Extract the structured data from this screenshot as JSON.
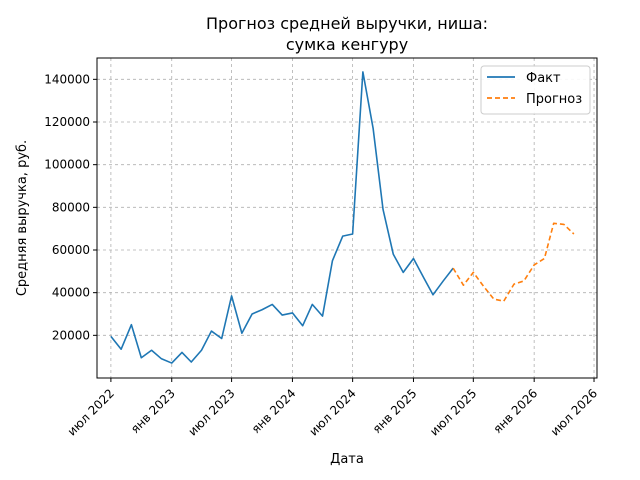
{
  "chart_data": {
    "type": "line",
    "title": [
      "Прогноз средней выручки, ниша:",
      "сумка кенгуру"
    ],
    "xlabel": "Дата",
    "ylabel": "Средняя выручка, руб.",
    "ylim": [
      0,
      150000
    ],
    "yticks": [
      20000,
      40000,
      60000,
      80000,
      100000,
      120000,
      140000
    ],
    "xlim": [
      "2022-05-20",
      "2026-07-10"
    ],
    "xticks": [
      {
        "date": "2022-07-01",
        "label": "июл 2022"
      },
      {
        "date": "2023-01-01",
        "label": "янв 2023"
      },
      {
        "date": "2023-07-01",
        "label": "июл 2023"
      },
      {
        "date": "2024-01-01",
        "label": "янв 2024"
      },
      {
        "date": "2024-07-01",
        "label": "июл 2024"
      },
      {
        "date": "2025-01-01",
        "label": "янв 2025"
      },
      {
        "date": "2025-07-01",
        "label": "июл 2025"
      },
      {
        "date": "2026-01-01",
        "label": "янв 2026"
      },
      {
        "date": "2026-07-01",
        "label": "июл 2026"
      }
    ],
    "grid": true,
    "legend_position": "top-right",
    "series": [
      {
        "name": "Факт",
        "color": "#1f77b4",
        "style": "solid",
        "points": [
          [
            "2022-07-01",
            19500
          ],
          [
            "2022-08-01",
            13500
          ],
          [
            "2022-09-01",
            25000
          ],
          [
            "2022-10-01",
            9500
          ],
          [
            "2022-11-01",
            13000
          ],
          [
            "2022-12-01",
            9000
          ],
          [
            "2023-01-01",
            7000
          ],
          [
            "2023-02-01",
            12000
          ],
          [
            "2023-03-01",
            7500
          ],
          [
            "2023-04-01",
            13000
          ],
          [
            "2023-05-01",
            22000
          ],
          [
            "2023-06-01",
            18500
          ],
          [
            "2023-07-01",
            38500
          ],
          [
            "2023-08-01",
            21000
          ],
          [
            "2023-09-01",
            30000
          ],
          [
            "2023-10-01",
            32000
          ],
          [
            "2023-11-01",
            34500
          ],
          [
            "2023-12-01",
            29500
          ],
          [
            "2024-01-01",
            30500
          ],
          [
            "2024-02-01",
            24500
          ],
          [
            "2024-03-01",
            34500
          ],
          [
            "2024-04-01",
            29000
          ],
          [
            "2024-05-01",
            55000
          ],
          [
            "2024-06-01",
            66500
          ],
          [
            "2024-07-01",
            67500
          ],
          [
            "2024-08-01",
            143500
          ],
          [
            "2024-09-01",
            117000
          ],
          [
            "2024-10-01",
            79000
          ],
          [
            "2024-11-01",
            58000
          ],
          [
            "2024-12-01",
            49500
          ],
          [
            "2025-01-01",
            56000
          ],
          [
            "2025-02-01",
            47000
          ],
          [
            "2025-03-01",
            39000
          ],
          [
            "2025-04-01",
            45500
          ],
          [
            "2025-05-01",
            51500
          ]
        ]
      },
      {
        "name": "Прогноз",
        "color": "#ff7f0e",
        "style": "dashed",
        "points": [
          [
            "2025-05-01",
            51500
          ],
          [
            "2025-06-01",
            43500
          ],
          [
            "2025-07-01",
            49500
          ],
          [
            "2025-08-01",
            43000
          ],
          [
            "2025-09-01",
            37000
          ],
          [
            "2025-10-01",
            36000
          ],
          [
            "2025-11-01",
            44000
          ],
          [
            "2025-12-01",
            45500
          ],
          [
            "2026-01-01",
            53000
          ],
          [
            "2026-02-01",
            56000
          ],
          [
            "2026-03-01",
            72500
          ],
          [
            "2026-04-01",
            72000
          ],
          [
            "2026-05-01",
            67500
          ]
        ]
      }
    ]
  }
}
